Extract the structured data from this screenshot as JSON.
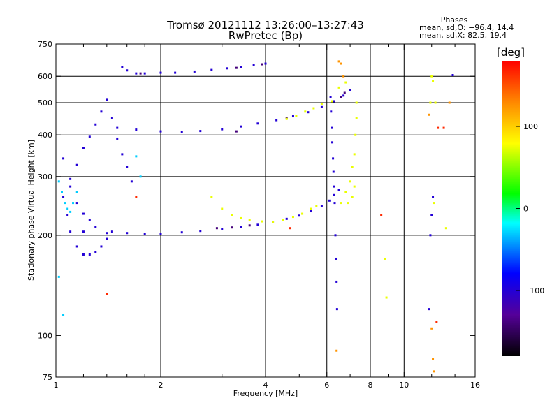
{
  "title": "Tromsø 20121112 13:26:00–13:27:43",
  "subtitle": "RwPretec (Bp)",
  "stats": {
    "heading": "Phases",
    "line_o": "mean, sd,O: −96.4, 14.4",
    "line_x": "mean, sd,X: 82.5, 19.4"
  },
  "chart_data": {
    "type": "scatter",
    "title": "Tromsø 20121112 13:26:00–13:27:43",
    "subtitle": "RwPretec (Bp)",
    "xlabel": "Frequency [MHz]",
    "ylabel": "Stationary phase Virtual Height [km]",
    "x_scale": "log",
    "y_scale": "log",
    "xlim": [
      1,
      16
    ],
    "ylim": [
      75,
      750
    ],
    "x_ticks": [
      1,
      2,
      4,
      6,
      8,
      10,
      16
    ],
    "x_tick_labels": [
      "1",
      "2",
      "4",
      "6",
      "8",
      "10",
      "16"
    ],
    "x_minor_ticks": [
      1.2,
      1.4,
      1.6,
      1.8,
      3,
      5,
      7,
      9,
      12,
      14
    ],
    "y_ticks": [
      75,
      100,
      200,
      300,
      400,
      500,
      600,
      750
    ],
    "y_tick_labels": [
      "75",
      "100",
      "200",
      "300",
      "400",
      "500",
      "600",
      "750"
    ],
    "x_grid": [
      2,
      4,
      6,
      8,
      10
    ],
    "y_grid": [
      200,
      300,
      400,
      500,
      600
    ],
    "grid": true,
    "colorbar": {
      "label": "[deg]",
      "range": [
        -180,
        180
      ],
      "ticks": [
        100,
        0,
        -100
      ],
      "tick_labels": [
        "100",
        "0",
        "−100"
      ]
    },
    "series": [
      {
        "phase_deg": -100,
        "points": [
          [
            1.55,
            640
          ],
          [
            1.6,
            625
          ],
          [
            1.7,
            612
          ],
          [
            1.8,
            612
          ],
          [
            2.0,
            615
          ],
          [
            2.2,
            615
          ],
          [
            2.5,
            620
          ],
          [
            2.8,
            627
          ],
          [
            3.1,
            634
          ],
          [
            3.4,
            641
          ],
          [
            3.7,
            649
          ],
          [
            4.0,
            655
          ],
          [
            1.5,
            420
          ],
          [
            1.7,
            415
          ],
          [
            2.0,
            410
          ],
          [
            2.3,
            409
          ],
          [
            2.6,
            411
          ],
          [
            3.0,
            416
          ],
          [
            3.4,
            424
          ],
          [
            3.8,
            433
          ],
          [
            4.3,
            443
          ],
          [
            4.8,
            455
          ],
          [
            5.3,
            468
          ],
          [
            5.8,
            485
          ],
          [
            6.3,
            505
          ],
          [
            6.7,
            525
          ],
          [
            7.0,
            545
          ],
          [
            1.2,
            205
          ],
          [
            1.4,
            203
          ],
          [
            1.6,
            203
          ],
          [
            1.8,
            202
          ],
          [
            2.0,
            202
          ],
          [
            2.3,
            204
          ],
          [
            2.6,
            206
          ],
          [
            3.0,
            209
          ],
          [
            3.4,
            212
          ],
          [
            3.8,
            215
          ],
          [
            4.2,
            219
          ],
          [
            4.6,
            224
          ],
          [
            5.0,
            229
          ],
          [
            5.4,
            236
          ],
          [
            5.8,
            245
          ],
          [
            6.1,
            254
          ],
          [
            6.3,
            264
          ],
          [
            6.5,
            274
          ],
          [
            1.05,
            260
          ],
          [
            1.08,
            230
          ],
          [
            1.1,
            205
          ],
          [
            1.15,
            185
          ],
          [
            1.2,
            175
          ],
          [
            1.25,
            175
          ],
          [
            1.3,
            178
          ],
          [
            1.35,
            185
          ],
          [
            1.4,
            195
          ],
          [
            1.45,
            205
          ],
          [
            1.1,
            295
          ],
          [
            1.15,
            325
          ],
          [
            1.2,
            365
          ],
          [
            1.25,
            395
          ],
          [
            1.3,
            430
          ],
          [
            1.35,
            470
          ],
          [
            1.4,
            510
          ],
          [
            1.45,
            450
          ],
          [
            1.5,
            390
          ],
          [
            1.55,
            350
          ],
          [
            1.6,
            320
          ],
          [
            1.65,
            290
          ],
          [
            1.05,
            340
          ],
          [
            1.1,
            280
          ],
          [
            1.15,
            250
          ],
          [
            1.2,
            232
          ],
          [
            1.25,
            222
          ],
          [
            1.3,
            212
          ],
          [
            6.15,
            520
          ],
          [
            6.17,
            470
          ],
          [
            6.2,
            420
          ],
          [
            6.22,
            380
          ],
          [
            6.25,
            340
          ],
          [
            6.27,
            310
          ],
          [
            6.3,
            280
          ],
          [
            6.32,
            250
          ],
          [
            6.35,
            200
          ],
          [
            6.38,
            170
          ],
          [
            6.4,
            145
          ],
          [
            6.42,
            120
          ],
          [
            11.9,
            200
          ],
          [
            12.0,
            230
          ],
          [
            12.1,
            260
          ],
          [
            11.8,
            120
          ],
          [
            13.8,
            605
          ]
        ]
      },
      {
        "phase_deg": -140,
        "points": [
          [
            1.75,
            612
          ],
          [
            3.3,
            636
          ],
          [
            3.9,
            652
          ],
          [
            2.9,
            210
          ],
          [
            3.2,
            211
          ],
          [
            3.6,
            214
          ],
          [
            3.3,
            410
          ],
          [
            4.6,
            450
          ],
          [
            6.6,
            520
          ],
          [
            6.75,
            535
          ]
        ]
      },
      {
        "phase_deg": -30,
        "points": [
          [
            1.02,
            290
          ],
          [
            1.04,
            270
          ],
          [
            1.06,
            250
          ],
          [
            1.08,
            240
          ],
          [
            1.1,
            235
          ],
          [
            1.12,
            250
          ],
          [
            1.02,
            150
          ],
          [
            1.05,
            115
          ],
          [
            1.15,
            270
          ],
          [
            1.7,
            345
          ],
          [
            1.75,
            300
          ]
        ]
      },
      {
        "phase_deg": 75,
        "points": [
          [
            2.8,
            260
          ],
          [
            3.0,
            240
          ],
          [
            3.2,
            230
          ],
          [
            3.4,
            225
          ],
          [
            3.6,
            222
          ],
          [
            3.9,
            220
          ],
          [
            4.2,
            219
          ],
          [
            4.5,
            222
          ],
          [
            4.8,
            227
          ],
          [
            5.1,
            232
          ],
          [
            5.4,
            240
          ],
          [
            5.6,
            245
          ],
          [
            4.6,
            447
          ],
          [
            4.9,
            456
          ],
          [
            5.2,
            470
          ],
          [
            5.5,
            481
          ],
          [
            5.8,
            494
          ],
          [
            6.2,
            505
          ],
          [
            6.5,
            555
          ],
          [
            6.8,
            575
          ],
          [
            6.6,
            250
          ],
          [
            6.8,
            270
          ],
          [
            7.0,
            290
          ],
          [
            7.1,
            320
          ],
          [
            7.2,
            350
          ],
          [
            7.25,
            400
          ],
          [
            7.3,
            450
          ],
          [
            7.3,
            500
          ],
          [
            7.2,
            280
          ],
          [
            7.1,
            260
          ],
          [
            6.9,
            250
          ],
          [
            12.0,
            600
          ],
          [
            12.1,
            580
          ],
          [
            12.2,
            250
          ],
          [
            12.3,
            500
          ],
          [
            11.9,
            500
          ],
          [
            13.2,
            210
          ],
          [
            8.8,
            170
          ],
          [
            8.9,
            130
          ]
        ]
      },
      {
        "phase_deg": 125,
        "points": [
          [
            6.5,
            665
          ],
          [
            6.6,
            655
          ],
          [
            6.7,
            600
          ],
          [
            12.0,
            105
          ],
          [
            12.1,
            85
          ],
          [
            12.2,
            78
          ],
          [
            6.4,
            90
          ],
          [
            11.8,
            460
          ],
          [
            13.5,
            500
          ]
        ]
      },
      {
        "phase_deg": 165,
        "points": [
          [
            1.4,
            133
          ],
          [
            1.7,
            260
          ],
          [
            4.7,
            210
          ],
          [
            8.6,
            230
          ],
          [
            12.5,
            420
          ],
          [
            13.0,
            420
          ],
          [
            12.4,
            110
          ]
        ]
      }
    ]
  }
}
